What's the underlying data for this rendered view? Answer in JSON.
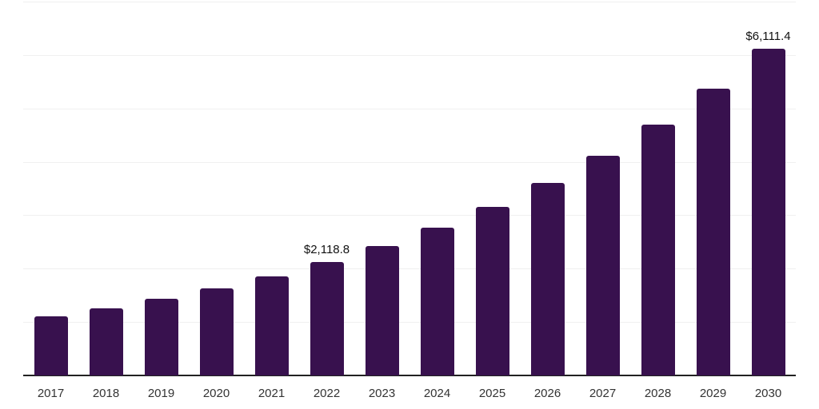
{
  "chart_data": {
    "type": "bar",
    "title": "",
    "xlabel": "",
    "ylabel": "",
    "categories": [
      "2017",
      "2018",
      "2019",
      "2020",
      "2021",
      "2022",
      "2023",
      "2024",
      "2025",
      "2026",
      "2027",
      "2028",
      "2029",
      "2030"
    ],
    "values": [
      1105,
      1255,
      1435,
      1630,
      1855,
      2118.8,
      2420,
      2765,
      3155,
      3605,
      4110,
      4695,
      5370,
      6111.4
    ],
    "data_labels": [
      {
        "index": 5,
        "text": "$2,118.8"
      },
      {
        "index": 13,
        "text": "$6,111.4"
      }
    ],
    "ylim": [
      0,
      7000
    ],
    "grid_interval": 1000,
    "grid": "horizontal-only",
    "legend_position": "none",
    "y_axis_labels_visible": false,
    "colors": {
      "bar": "#38114e",
      "axis": "#222222",
      "gridline": "#f0f0f0",
      "tick_label": "#333333",
      "data_label": "#111111",
      "background": "#ffffff"
    }
  }
}
